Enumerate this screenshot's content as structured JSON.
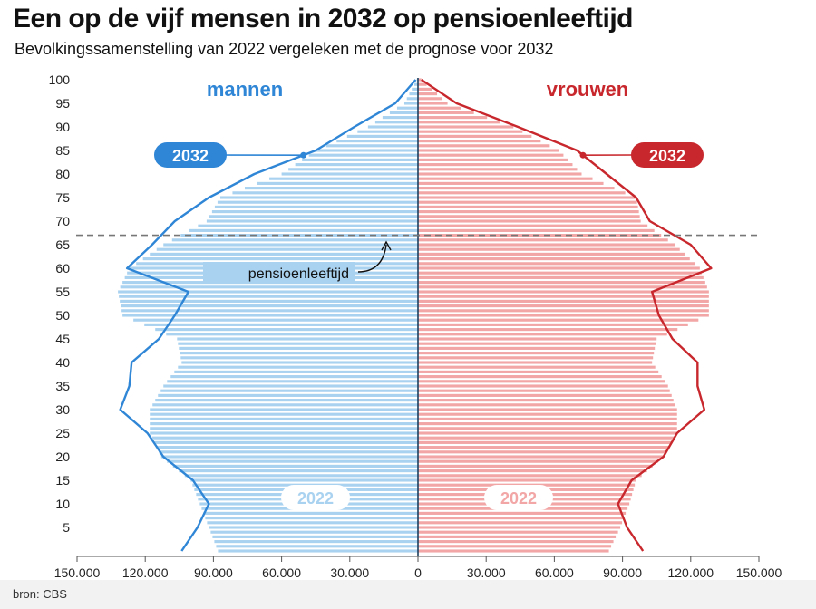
{
  "title": "Een op de vijf mensen in 2032 op pensioenleeftijd",
  "subtitle": "Bevolkingssamenstelling van 2022 vergeleken met de prognose voor 2032",
  "source": "bron: CBS",
  "colors": {
    "men_bar": "#a9d2f0",
    "men_line": "#2f86d6",
    "women_bar": "#f2a6a6",
    "women_line": "#c8282d",
    "axis": "#555555",
    "center_line": "#1c3f5e",
    "dashed_line": "#777777"
  },
  "chart_data": {
    "type": "bar",
    "orientation": "population-pyramid",
    "left_label": "mannen",
    "right_label": "vrouwen",
    "xlim": [
      -150000,
      150000
    ],
    "x_ticks": [
      "150.000",
      "120.000",
      "90.000",
      "60.000",
      "30.000",
      "0",
      "30.000",
      "60.000",
      "90.000",
      "120.000",
      "150.000"
    ],
    "ylim": [
      0,
      100
    ],
    "y_ticks": [
      5,
      10,
      15,
      20,
      25,
      30,
      35,
      40,
      45,
      50,
      55,
      60,
      65,
      70,
      75,
      80,
      85,
      90,
      95,
      100
    ],
    "bar_series_label": "2022",
    "line_series_label": "2032",
    "annotation": {
      "label": "pensioenleeftijd",
      "age": 67
    },
    "men_2022": [
      {
        "age": 0,
        "value": 88000
      },
      {
        "age": 5,
        "value": 92000
      },
      {
        "age": 10,
        "value": 96000
      },
      {
        "age": 15,
        "value": 100000
      },
      {
        "age": 20,
        "value": 113000
      },
      {
        "age": 25,
        "value": 118000
      },
      {
        "age": 30,
        "value": 118000
      },
      {
        "age": 35,
        "value": 112000
      },
      {
        "age": 40,
        "value": 104000
      },
      {
        "age": 45,
        "value": 106000
      },
      {
        "age": 50,
        "value": 130000
      },
      {
        "age": 55,
        "value": 132000
      },
      {
        "age": 60,
        "value": 127000
      },
      {
        "age": 65,
        "value": 112000
      },
      {
        "age": 70,
        "value": 93000
      },
      {
        "age": 75,
        "value": 87000
      },
      {
        "age": 80,
        "value": 60000
      },
      {
        "age": 85,
        "value": 45000
      },
      {
        "age": 90,
        "value": 22000
      },
      {
        "age": 95,
        "value": 6000
      },
      {
        "age": 100,
        "value": 500
      }
    ],
    "women_2022": [
      {
        "age": 0,
        "value": 84000
      },
      {
        "age": 5,
        "value": 89000
      },
      {
        "age": 10,
        "value": 93000
      },
      {
        "age": 15,
        "value": 96000
      },
      {
        "age": 20,
        "value": 108000
      },
      {
        "age": 25,
        "value": 114000
      },
      {
        "age": 30,
        "value": 114000
      },
      {
        "age": 35,
        "value": 110000
      },
      {
        "age": 40,
        "value": 103000
      },
      {
        "age": 45,
        "value": 105000
      },
      {
        "age": 50,
        "value": 128000
      },
      {
        "age": 55,
        "value": 128000
      },
      {
        "age": 60,
        "value": 124000
      },
      {
        "age": 65,
        "value": 113000
      },
      {
        "age": 70,
        "value": 98000
      },
      {
        "age": 75,
        "value": 96000
      },
      {
        "age": 80,
        "value": 72000
      },
      {
        "age": 85,
        "value": 62000
      },
      {
        "age": 90,
        "value": 42000
      },
      {
        "age": 95,
        "value": 13000
      },
      {
        "age": 100,
        "value": 1500
      }
    ],
    "men_2032": [
      {
        "age": 0,
        "value": 104000
      },
      {
        "age": 5,
        "value": 97000
      },
      {
        "age": 10,
        "value": 92000
      },
      {
        "age": 15,
        "value": 99000
      },
      {
        "age": 20,
        "value": 112000
      },
      {
        "age": 25,
        "value": 119000
      },
      {
        "age": 30,
        "value": 131000
      },
      {
        "age": 35,
        "value": 127000
      },
      {
        "age": 40,
        "value": 126000
      },
      {
        "age": 45,
        "value": 114000
      },
      {
        "age": 50,
        "value": 107000
      },
      {
        "age": 55,
        "value": 101000
      },
      {
        "age": 60,
        "value": 128000
      },
      {
        "age": 65,
        "value": 117000
      },
      {
        "age": 70,
        "value": 107000
      },
      {
        "age": 75,
        "value": 92000
      },
      {
        "age": 80,
        "value": 72000
      },
      {
        "age": 85,
        "value": 45000
      },
      {
        "age": 90,
        "value": 28000
      },
      {
        "age": 95,
        "value": 10000
      },
      {
        "age": 100,
        "value": 1000
      }
    ],
    "women_2032": [
      {
        "age": 0,
        "value": 99000
      },
      {
        "age": 5,
        "value": 92000
      },
      {
        "age": 10,
        "value": 88000
      },
      {
        "age": 15,
        "value": 94000
      },
      {
        "age": 20,
        "value": 108000
      },
      {
        "age": 25,
        "value": 114000
      },
      {
        "age": 30,
        "value": 126000
      },
      {
        "age": 35,
        "value": 123000
      },
      {
        "age": 40,
        "value": 123000
      },
      {
        "age": 45,
        "value": 112000
      },
      {
        "age": 50,
        "value": 106000
      },
      {
        "age": 55,
        "value": 103000
      },
      {
        "age": 60,
        "value": 129000
      },
      {
        "age": 65,
        "value": 120000
      },
      {
        "age": 70,
        "value": 102000
      },
      {
        "age": 75,
        "value": 96000
      },
      {
        "age": 80,
        "value": 83000
      },
      {
        "age": 85,
        "value": 70000
      },
      {
        "age": 90,
        "value": 44000
      },
      {
        "age": 95,
        "value": 17000
      },
      {
        "age": 100,
        "value": 1500
      }
    ]
  }
}
